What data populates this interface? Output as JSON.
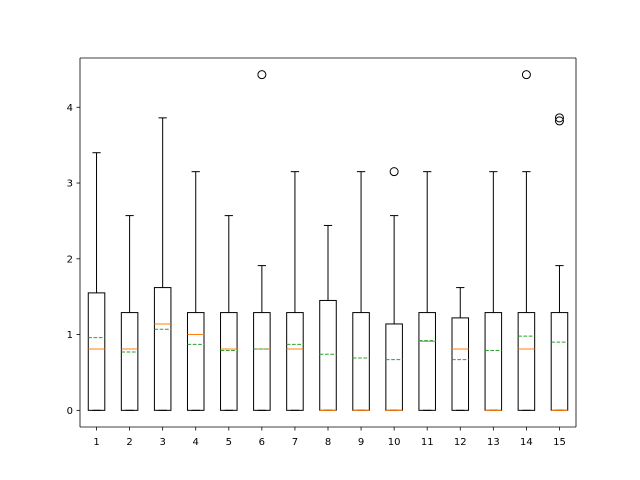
{
  "chart_data": {
    "type": "box",
    "title": "",
    "xlabel": "",
    "ylabel": "",
    "categories": [
      "1",
      "2",
      "3",
      "4",
      "5",
      "6",
      "7",
      "8",
      "9",
      "10",
      "11",
      "12",
      "13",
      "14",
      "15"
    ],
    "ylim": [
      -0.22,
      4.65
    ],
    "yticks": [
      0,
      1,
      2,
      3,
      4
    ],
    "ytick_labels": [
      "0",
      "1",
      "2",
      "3",
      "4"
    ],
    "grid": false,
    "legend": "none",
    "colors": {
      "box": "#000000",
      "median": "#ff7f0e",
      "mean": "#2ca02c",
      "flier": "#000000"
    },
    "boxes": [
      {
        "label": "1",
        "whislo": 0,
        "q1": 0,
        "med": 0.81,
        "mean": 0.96,
        "q3": 1.55,
        "whishi": 3.4,
        "fliers": []
      },
      {
        "label": "2",
        "whislo": 0,
        "q1": 0,
        "med": 0.81,
        "mean": 0.77,
        "q3": 1.29,
        "whishi": 2.57,
        "fliers": []
      },
      {
        "label": "3",
        "whislo": 0,
        "q1": 0,
        "med": 1.14,
        "mean": 1.07,
        "q3": 1.62,
        "whishi": 3.86,
        "fliers": []
      },
      {
        "label": "4",
        "whislo": 0,
        "q1": 0,
        "med": 1.0,
        "mean": 0.87,
        "q3": 1.29,
        "whishi": 3.15,
        "fliers": []
      },
      {
        "label": "5",
        "whislo": 0,
        "q1": 0,
        "med": 0.81,
        "mean": 0.79,
        "q3": 1.29,
        "whishi": 2.57,
        "fliers": []
      },
      {
        "label": "6",
        "whislo": 0,
        "q1": 0,
        "med": 0.81,
        "mean": 0.81,
        "q3": 1.29,
        "whishi": 1.91,
        "fliers": [
          4.43
        ]
      },
      {
        "label": "7",
        "whislo": 0,
        "q1": 0,
        "med": 0.81,
        "mean": 0.87,
        "q3": 1.29,
        "whishi": 3.15,
        "fliers": []
      },
      {
        "label": "8",
        "whislo": 0,
        "q1": 0,
        "med": 0,
        "mean": 0.74,
        "q3": 1.45,
        "whishi": 2.44,
        "fliers": []
      },
      {
        "label": "9",
        "whislo": 0,
        "q1": 0,
        "med": 0,
        "mean": 0.69,
        "q3": 1.29,
        "whishi": 3.15,
        "fliers": []
      },
      {
        "label": "10",
        "whislo": 0,
        "q1": 0,
        "med": 0,
        "mean": 0.67,
        "q3": 1.14,
        "whishi": 2.57,
        "fliers": [
          3.15
        ]
      },
      {
        "label": "11",
        "whislo": 0,
        "q1": 0,
        "med": 0.91,
        "mean": 0.92,
        "q3": 1.29,
        "whishi": 3.15,
        "fliers": []
      },
      {
        "label": "12",
        "whislo": 0,
        "q1": 0,
        "med": 0.81,
        "mean": 0.67,
        "q3": 1.22,
        "whishi": 1.62,
        "fliers": []
      },
      {
        "label": "13",
        "whislo": 0,
        "q1": 0,
        "med": 0,
        "mean": 0.79,
        "q3": 1.29,
        "whishi": 3.15,
        "fliers": []
      },
      {
        "label": "14",
        "whislo": 0,
        "q1": 0,
        "med": 0.81,
        "mean": 0.98,
        "q3": 1.29,
        "whishi": 3.15,
        "fliers": [
          4.43
        ]
      },
      {
        "label": "15",
        "whislo": 0,
        "q1": 0,
        "med": 0,
        "mean": 0.9,
        "q3": 1.29,
        "whishi": 1.91,
        "fliers": [
          3.82,
          3.86
        ]
      }
    ]
  }
}
